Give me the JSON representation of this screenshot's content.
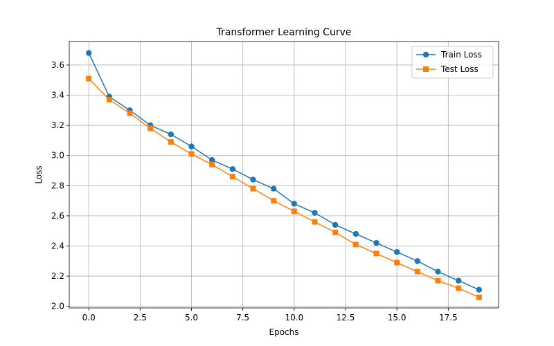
{
  "chart_data": {
    "type": "line",
    "title": "Transformer Learning Curve",
    "xlabel": "Epochs",
    "ylabel": "Loss",
    "xlim": [
      -0.95,
      19.95
    ],
    "ylim": [
      1.9893,
      3.7557
    ],
    "x_ticks": [
      0.0,
      2.5,
      5.0,
      7.5,
      10.0,
      12.5,
      15.0,
      17.5
    ],
    "x_tick_labels": [
      "0.0",
      "2.5",
      "5.0",
      "7.5",
      "10.0",
      "12.5",
      "15.0",
      "17.5"
    ],
    "y_ticks": [
      2.0,
      2.2,
      2.4,
      2.6,
      2.8,
      3.0,
      3.2,
      3.4,
      3.6
    ],
    "y_tick_labels": [
      "2.0",
      "2.2",
      "2.4",
      "2.6",
      "2.8",
      "3.0",
      "3.2",
      "3.4",
      "3.6"
    ],
    "grid": true,
    "legend_position": "top-right",
    "x": [
      0,
      1,
      2,
      3,
      4,
      5,
      6,
      7,
      8,
      9,
      10,
      11,
      12,
      13,
      14,
      15,
      16,
      17,
      18,
      19
    ],
    "series": [
      {
        "name": "Train Loss",
        "color": "#1f77b4",
        "marker": "circle",
        "values": [
          3.68,
          3.39,
          3.3,
          3.2,
          3.14,
          3.06,
          2.97,
          2.91,
          2.84,
          2.78,
          2.68,
          2.62,
          2.54,
          2.48,
          2.42,
          2.36,
          2.3,
          2.23,
          2.17,
          2.11
        ]
      },
      {
        "name": "Test Loss",
        "color": "#ff7f0e",
        "marker": "square",
        "values": [
          3.51,
          3.37,
          3.28,
          3.18,
          3.09,
          3.01,
          2.94,
          2.86,
          2.78,
          2.7,
          2.63,
          2.56,
          2.49,
          2.41,
          2.35,
          2.29,
          2.23,
          2.17,
          2.12,
          2.06
        ]
      }
    ]
  }
}
